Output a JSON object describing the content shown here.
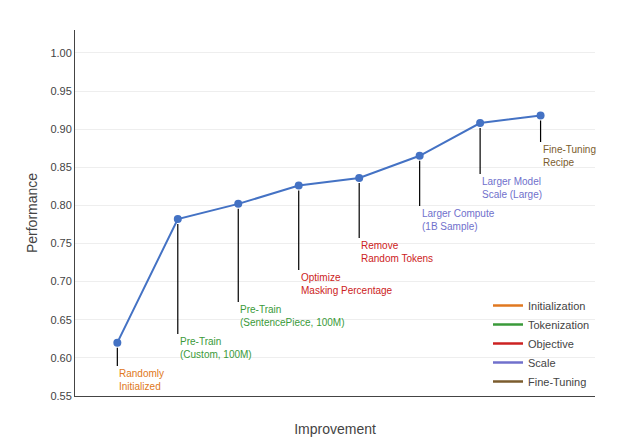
{
  "chart_data": {
    "type": "line",
    "x": [
      1,
      2,
      3,
      4,
      5,
      6,
      7,
      8
    ],
    "values": [
      0.62,
      0.782,
      0.802,
      0.826,
      0.836,
      0.865,
      0.908,
      0.918
    ],
    "color": "#4472C4",
    "marker": "circle",
    "xlabel": "Improvement",
    "ylabel": "Performance",
    "xlim": [
      0.3,
      8.9
    ],
    "ylim": [
      0.55,
      1.03
    ],
    "xticks": [],
    "yticks": [
      0.55,
      {
        "value": 0.6,
        "label": "0.60"
      },
      0.65,
      {
        "value": 0.7,
        "label": "0.70"
      },
      0.75,
      {
        "value": 0.8,
        "label": "0.80"
      },
      0.85,
      {
        "value": 0.9,
        "label": "0.90"
      },
      0.95,
      {
        "value": 1.0,
        "label": "1.00"
      }
    ],
    "tick_labels": "y",
    "grid": true,
    "legend": "lower right",
    "legend_items": [
      {
        "name": "Initialization",
        "color": "#E07820"
      },
      {
        "name": "Tokenization",
        "color": "#3A9A3A"
      },
      {
        "name": "Objective",
        "color": "#CC2222"
      },
      {
        "name": "Scale",
        "color": "#7070CC"
      },
      {
        "name": "Fine-Tuning",
        "color": "#7B5C2E"
      }
    ],
    "annotations": [
      {
        "text": "Randomly\nInitialized",
        "x": 1,
        "y": 0.62,
        "color": "#E07820"
      },
      {
        "text": "Pre-Train\n(Custom, 100M)",
        "x": 2,
        "y": 0.782,
        "color": "#3A9A3A"
      },
      {
        "text": "Pre-Train\n(SentencePiece, 100M)",
        "x": 3,
        "y": 0.802,
        "color": "#3A9A3A"
      },
      {
        "text": "Optimize\nMasking Percentage",
        "x": 4,
        "y": 0.826,
        "color": "#CC2222"
      },
      {
        "text": "Remove\nRandom Tokens",
        "x": 5,
        "y": 0.836,
        "color": "#CC2222"
      },
      {
        "text": "Larger Compute\n(1B Sample)",
        "x": 6,
        "y": 0.865,
        "color": "#7070CC"
      },
      {
        "text": "Larger Model\nScale (Large)",
        "x": 7,
        "y": 0.908,
        "color": "#7070CC"
      },
      {
        "text": "Fine-Tuning\nRecipe",
        "x": 8,
        "y": 0.918,
        "color": "#7B5C2E"
      }
    ]
  }
}
